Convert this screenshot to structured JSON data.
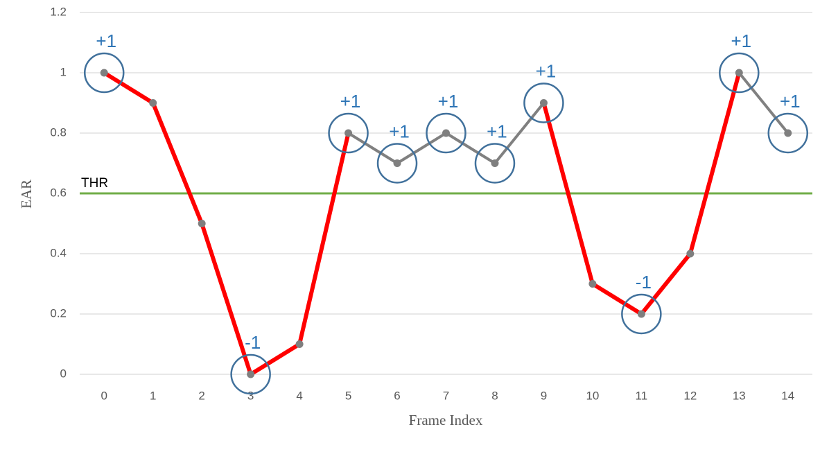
{
  "chart_data": {
    "type": "line",
    "x_label": "Frame Index",
    "y_label": "EAR",
    "x": [
      0,
      1,
      2,
      3,
      4,
      5,
      6,
      7,
      8,
      9,
      10,
      11,
      12,
      13,
      14
    ],
    "values": [
      1,
      0.9,
      0.5,
      0,
      0.1,
      0.8,
      0.7,
      0.8,
      0.7,
      0.9,
      0.3,
      0.2,
      0.4,
      1,
      0.8
    ],
    "segment_colors": [
      "#ff0000",
      "#ff0000",
      "#ff0000",
      "#ff0000",
      "#ff0000",
      "#808080",
      "#808080",
      "#808080",
      "#808080",
      "#ff0000",
      "#ff0000",
      "#ff0000",
      "#ff0000",
      "#808080"
    ],
    "point_color": "#7f7f7f",
    "xlim": [
      -0.5,
      14.5
    ],
    "xticks": [
      0,
      1,
      2,
      3,
      4,
      5,
      6,
      7,
      8,
      9,
      10,
      11,
      12,
      13,
      14
    ],
    "ylim": [
      0,
      1.2
    ],
    "yticks": [
      0,
      0.2,
      0.4,
      0.6,
      0.8,
      1,
      1.2
    ],
    "grid": true,
    "threshold": {
      "value": 0.6,
      "label": "THR",
      "color": "#70ad47"
    },
    "annotations": [
      {
        "x": 0,
        "label": "+1"
      },
      {
        "x": 3,
        "label": "-1"
      },
      {
        "x": 5,
        "label": "+1"
      },
      {
        "x": 6,
        "label": "+1"
      },
      {
        "x": 7,
        "label": "+1"
      },
      {
        "x": 8,
        "label": "+1"
      },
      {
        "x": 9,
        "label": "+1"
      },
      {
        "x": 11,
        "label": "-1"
      },
      {
        "x": 13,
        "label": "+1"
      },
      {
        "x": 14,
        "label": "+1"
      }
    ],
    "annotation_color": "#41719c"
  }
}
